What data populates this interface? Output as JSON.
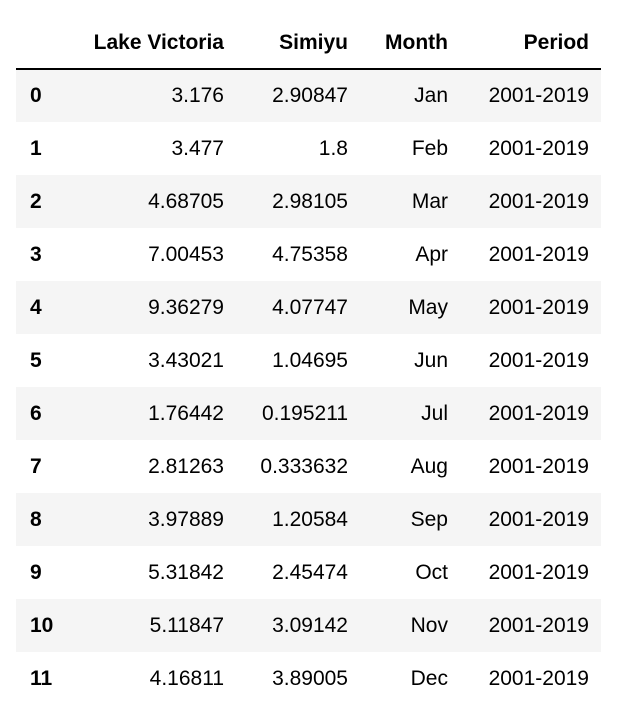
{
  "table": {
    "columns": [
      "",
      "Lake Victoria",
      "Simiyu",
      "Month",
      "Period"
    ],
    "rows": [
      {
        "index": "0",
        "lake_victoria": "3.176",
        "simiyu": "2.90847",
        "month": "Jan",
        "period": "2001-2019"
      },
      {
        "index": "1",
        "lake_victoria": "3.477",
        "simiyu": "1.8",
        "month": "Feb",
        "period": "2001-2019"
      },
      {
        "index": "2",
        "lake_victoria": "4.68705",
        "simiyu": "2.98105",
        "month": "Mar",
        "period": "2001-2019"
      },
      {
        "index": "3",
        "lake_victoria": "7.00453",
        "simiyu": "4.75358",
        "month": "Apr",
        "period": "2001-2019"
      },
      {
        "index": "4",
        "lake_victoria": "9.36279",
        "simiyu": "4.07747",
        "month": "May",
        "period": "2001-2019"
      },
      {
        "index": "5",
        "lake_victoria": "3.43021",
        "simiyu": "1.04695",
        "month": "Jun",
        "period": "2001-2019"
      },
      {
        "index": "6",
        "lake_victoria": "1.76442",
        "simiyu": "0.195211",
        "month": "Jul",
        "period": "2001-2019"
      },
      {
        "index": "7",
        "lake_victoria": "2.81263",
        "simiyu": "0.333632",
        "month": "Aug",
        "period": "2001-2019"
      },
      {
        "index": "8",
        "lake_victoria": "3.97889",
        "simiyu": "1.20584",
        "month": "Sep",
        "period": "2001-2019"
      },
      {
        "index": "9",
        "lake_victoria": "5.31842",
        "simiyu": "2.45474",
        "month": "Oct",
        "period": "2001-2019"
      },
      {
        "index": "10",
        "lake_victoria": "5.11847",
        "simiyu": "3.09142",
        "month": "Nov",
        "period": "2001-2019"
      },
      {
        "index": "11",
        "lake_victoria": "4.16811",
        "simiyu": "3.89005",
        "month": "Dec",
        "period": "2001-2019"
      }
    ]
  }
}
